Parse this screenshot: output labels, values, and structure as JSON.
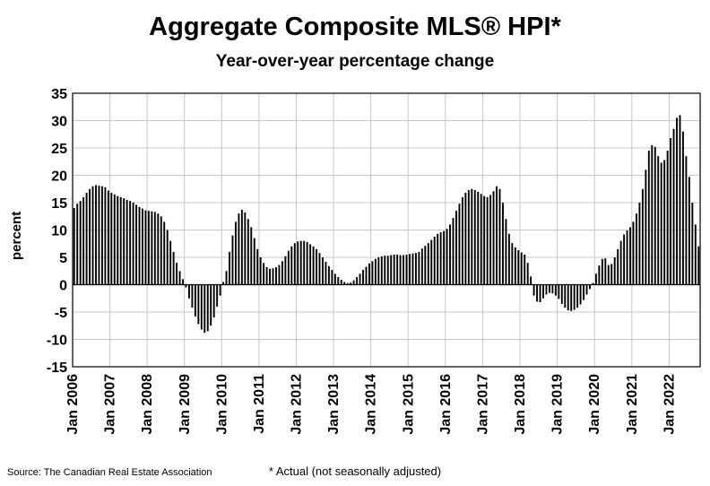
{
  "chart_data": {
    "type": "bar",
    "title": "Aggregate Composite MLS® HPI*",
    "subtitle": "Year-over-year percentage change",
    "xlabel": "",
    "ylabel": "percent",
    "ylim": [
      -15,
      35
    ],
    "yticks": [
      -15,
      -10,
      -5,
      0,
      5,
      10,
      15,
      20,
      25,
      30,
      35
    ],
    "grid": true,
    "start": "Jan 2006",
    "frequency": "monthly",
    "xticks": [
      "Jan 2006",
      "Jan 2007",
      "Jan 2008",
      "Jan 2009",
      "Jan 2010",
      "Jan 2011",
      "Jan 2012",
      "Jan 2013",
      "Jan 2014",
      "Jan 2015",
      "Jan 2016",
      "Jan 2017",
      "Jan 2018",
      "Jan 2019",
      "Jan 2020",
      "Jan 2021",
      "Jan 2022"
    ],
    "values": [
      14.0,
      14.8,
      15.3,
      16.0,
      16.8,
      17.5,
      18.0,
      18.2,
      18.1,
      18.0,
      17.8,
      17.2,
      16.8,
      16.5,
      16.2,
      16.0,
      15.8,
      15.5,
      15.3,
      15.0,
      14.6,
      14.2,
      13.9,
      13.6,
      13.5,
      13.4,
      13.3,
      13.0,
      12.5,
      11.5,
      10.0,
      8.0,
      6.0,
      4.0,
      2.5,
      1.0,
      -0.5,
      -2.5,
      -4.2,
      -5.8,
      -7.2,
      -8.2,
      -8.8,
      -8.5,
      -7.5,
      -6.0,
      -4.0,
      -2.0,
      0.5,
      2.5,
      6.0,
      9.0,
      11.5,
      13.0,
      13.7,
      13.2,
      12.0,
      10.5,
      8.5,
      6.5,
      5.0,
      4.0,
      3.2,
      2.9,
      3.0,
      3.2,
      3.6,
      4.3,
      5.2,
      6.2,
      7.0,
      7.6,
      7.9,
      8.0,
      8.0,
      7.8,
      7.4,
      7.0,
      6.5,
      5.8,
      5.0,
      4.2,
      3.4,
      2.7,
      2.0,
      1.4,
      0.9,
      0.5,
      0.3,
      0.4,
      0.8,
      1.4,
      2.0,
      2.7,
      3.3,
      3.9,
      4.3,
      4.7,
      5.0,
      5.2,
      5.3,
      5.3,
      5.4,
      5.5,
      5.5,
      5.4,
      5.4,
      5.5,
      5.6,
      5.7,
      5.8,
      6.0,
      6.6,
      7.1,
      7.6,
      8.2,
      8.8,
      9.3,
      9.6,
      9.8,
      10.2,
      11.0,
      12.2,
      13.5,
      14.8,
      16.0,
      16.8,
      17.3,
      17.5,
      17.3,
      17.0,
      16.6,
      16.2,
      16.0,
      16.4,
      17.1,
      18.0,
      17.5,
      15.0,
      12.0,
      9.3,
      7.6,
      6.8,
      6.3,
      5.9,
      5.5,
      4.0,
      1.5,
      -2.0,
      -3.1,
      -3.2,
      -2.5,
      -1.8,
      -1.5,
      -1.6,
      -2.0,
      -2.6,
      -3.5,
      -4.2,
      -4.7,
      -4.8,
      -4.6,
      -4.2,
      -3.6,
      -2.8,
      -1.8,
      -0.8,
      0.3,
      2.0,
      3.5,
      4.7,
      4.8,
      3.6,
      3.8,
      5.0,
      6.5,
      8.0,
      9.2,
      9.9,
      10.5,
      11.5,
      13.0,
      15.0,
      17.5,
      21.0,
      24.5,
      25.5,
      25.2,
      23.5,
      22.3,
      22.8,
      24.5,
      26.8,
      28.5,
      30.5,
      31.0,
      28.0,
      23.5,
      19.7,
      15.0,
      11.0,
      7.0
    ],
    "bar_color": "#000000"
  },
  "source": "Source: The Canadian Real Estate Association",
  "footnote": "* Actual (not seasonally adjusted)"
}
